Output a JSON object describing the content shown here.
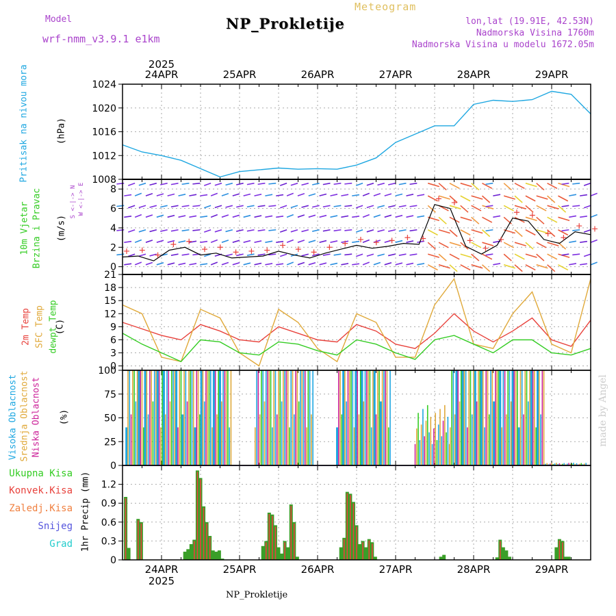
{
  "header": {
    "model_label": "Model",
    "model_name": "wrf-nmm_v3.9.1 e1km",
    "meteogram_label": "Meteogram",
    "station": "NP_Prokletije",
    "lonlat": "lon,lat (19.91E, 42.53N)",
    "elevation": "Nadmorska Visina 1760m",
    "model_elevation": "Nadmorska Visina u modelu 1672.05m",
    "watermark": "made by Angel",
    "footer_station": "NP_Prokletije"
  },
  "colors": {
    "pressure": "#1ea7e1",
    "temp2m": "#e8423c",
    "sfc": "#e0a93a",
    "dewpt": "#33cc22",
    "high_cloud": "#1ea7e1",
    "mid_cloud": "#e0a93a",
    "low_cloud": "#cc2299",
    "precip_total": "#3a9e28",
    "precip_conv": "#e8423c",
    "snow": "#5555dd",
    "hail": "#22cccc",
    "label_purple": "#aa44cc",
    "label_green": "#33cc22"
  },
  "time_axis": {
    "year": "2025",
    "days": [
      "24APR",
      "25APR",
      "26APR",
      "27APR",
      "28APR",
      "29APR"
    ],
    "start_day_offset": -0.5,
    "end_day_offset": 5.5
  },
  "chart_data": [
    {
      "type": "line",
      "panel": "pressure",
      "ylabel": "Pritisak na nivou mora",
      "unit": "(hPa)",
      "ylim": [
        1008,
        1024
      ],
      "yticks": [
        1008,
        1012,
        1016,
        1020,
        1024
      ],
      "x": [
        -0.5,
        -0.25,
        0,
        0.25,
        0.5,
        0.75,
        1,
        1.25,
        1.5,
        1.75,
        2,
        2.25,
        2.5,
        2.75,
        3,
        3.25,
        3.5,
        3.75,
        4,
        4.25,
        4.5,
        4.75,
        5,
        5.25,
        5.5
      ],
      "values": [
        1013.8,
        1012.6,
        1012.0,
        1011.2,
        1009.8,
        1008.4,
        1009.3,
        1009.6,
        1009.9,
        1009.7,
        1009.8,
        1009.7,
        1010.4,
        1011.6,
        1014.2,
        1015.6,
        1017.0,
        1017.0,
        1020.6,
        1021.3,
        1021.1,
        1021.4,
        1022.8,
        1022.3,
        1019.0
      ],
      "grid": true
    },
    {
      "type": "line",
      "panel": "wind",
      "ylabel": "10m Vjetar Brzina i Pravac",
      "unit": "(m/s)",
      "compass": "N S E W",
      "ylim": [
        -0.8,
        9
      ],
      "yticks": [
        0,
        2,
        4,
        6,
        8
      ],
      "x": [
        -0.5,
        -0.3,
        -0.1,
        0.1,
        0.3,
        0.5,
        0.7,
        0.9,
        1.1,
        1.3,
        1.5,
        1.7,
        1.9,
        2.1,
        2.3,
        2.5,
        2.7,
        2.9,
        3.1,
        3.3,
        3.5,
        3.7,
        3.9,
        4.1,
        4.3,
        4.5,
        4.7,
        4.9,
        5.1,
        5.3,
        5.5
      ],
      "series": [
        {
          "name": "speed",
          "values": [
            1.0,
            1.1,
            0.6,
            1.7,
            2.0,
            1.2,
            1.4,
            0.9,
            1.0,
            1.1,
            1.6,
            1.2,
            0.9,
            1.4,
            1.8,
            2.2,
            1.9,
            2.1,
            2.4,
            2.3,
            6.4,
            6.0,
            2.1,
            1.3,
            2.2,
            5.0,
            4.7,
            2.8,
            2.4,
            3.6,
            3.3
          ]
        }
      ],
      "grid": true
    },
    {
      "type": "line",
      "panel": "temperature",
      "ylabel_2m": "2m Temp",
      "ylabel_sfc": "SFC Temp",
      "ylabel_dew": "dewpt Temp",
      "unit": "(C)",
      "ylim": [
        -1,
        21
      ],
      "yticks": [
        0,
        3,
        6,
        9,
        12,
        15,
        18,
        21
      ],
      "x": [
        -0.5,
        -0.25,
        0,
        0.25,
        0.5,
        0.75,
        1,
        1.25,
        1.5,
        1.75,
        2,
        2.25,
        2.5,
        2.75,
        3,
        3.25,
        3.5,
        3.75,
        4,
        4.25,
        4.5,
        4.75,
        5,
        5.25,
        5.5
      ],
      "series": [
        {
          "name": "2m Temp",
          "values": [
            10,
            8.5,
            7,
            6,
            9.5,
            8,
            6,
            5.5,
            9,
            7.5,
            6,
            5.5,
            9.5,
            8,
            5,
            4,
            7.5,
            12,
            8,
            5.5,
            8,
            11,
            6,
            4.5,
            10.5
          ]
        },
        {
          "name": "SFC Temp",
          "values": [
            14,
            12,
            2,
            1,
            13,
            11,
            3,
            0,
            13,
            10,
            4,
            1,
            12,
            10,
            2,
            2,
            14,
            20,
            5,
            4,
            12,
            17,
            5,
            3,
            20
          ]
        },
        {
          "name": "dewpt Temp",
          "values": [
            7.5,
            5,
            3,
            1,
            6,
            5.5,
            3,
            2.5,
            5.5,
            5,
            3.5,
            2.5,
            6,
            5,
            3,
            1.5,
            6,
            7,
            5,
            3,
            6,
            6,
            3,
            2.5,
            4
          ]
        }
      ],
      "grid": true
    },
    {
      "type": "bar",
      "panel": "cloud",
      "ylabel_high": "Visoka Oblacnost",
      "ylabel_mid": "Srednja Oblacnost",
      "ylabel_low": "Niska Oblacnost",
      "unit": "(%)",
      "ylim": [
        0,
        100
      ],
      "yticks": [
        0,
        25,
        50,
        75,
        100
      ],
      "segments": [
        {
          "from": -0.45,
          "to": 0.9,
          "value": 100
        },
        {
          "from": 1.2,
          "to": 1.95,
          "value": 100
        },
        {
          "from": 2.25,
          "to": 2.95,
          "value": 100
        },
        {
          "from": 3.25,
          "to": 3.7,
          "value": 45
        },
        {
          "from": 3.7,
          "to": 4.9,
          "value": 100
        },
        {
          "from": 4.9,
          "to": 5.45,
          "value": 2
        }
      ],
      "grid": true
    },
    {
      "type": "bar",
      "panel": "precip",
      "ylabel": "1hr Precip",
      "unit": "(mm)",
      "ylim": [
        0,
        1.5
      ],
      "yticks": [
        0,
        0.3,
        0.6,
        0.9,
        1.2
      ],
      "legend": [
        "Ukupna Kisa",
        "Konvek.Kisa",
        "Zaledj.Kisa",
        "Snijeg",
        "Grad"
      ],
      "x": [
        -0.46,
        -0.42,
        -0.3,
        -0.26,
        0.3,
        0.34,
        0.38,
        0.42,
        0.46,
        0.5,
        0.54,
        0.58,
        0.62,
        0.66,
        0.7,
        0.74,
        0.78,
        1.3,
        1.34,
        1.38,
        1.42,
        1.46,
        1.5,
        1.54,
        1.58,
        1.62,
        1.66,
        1.7,
        1.74,
        2.3,
        2.34,
        2.38,
        2.42,
        2.46,
        2.5,
        2.54,
        2.58,
        2.62,
        2.66,
        2.7,
        2.74,
        3.58,
        3.62,
        4.3,
        4.34,
        4.38,
        4.42,
        4.46,
        5.06,
        5.1,
        5.14,
        5.18,
        5.22
      ],
      "values": [
        1.0,
        0.19,
        0.65,
        0.6,
        0.13,
        0.17,
        0.25,
        0.32,
        1.42,
        1.3,
        0.85,
        0.6,
        0.38,
        0.15,
        0.13,
        0.15,
        0.02,
        0.22,
        0.3,
        0.75,
        0.72,
        0.55,
        0.2,
        0.1,
        0.3,
        0.2,
        0.88,
        0.6,
        0.05,
        0.2,
        0.35,
        1.08,
        1.05,
        0.92,
        0.55,
        0.25,
        0.3,
        0.2,
        0.33,
        0.28,
        0.05,
        0.05,
        0.08,
        0.04,
        0.32,
        0.2,
        0.15,
        0.05,
        0.2,
        0.33,
        0.3,
        0.05,
        0.05
      ],
      "grid": true
    }
  ]
}
